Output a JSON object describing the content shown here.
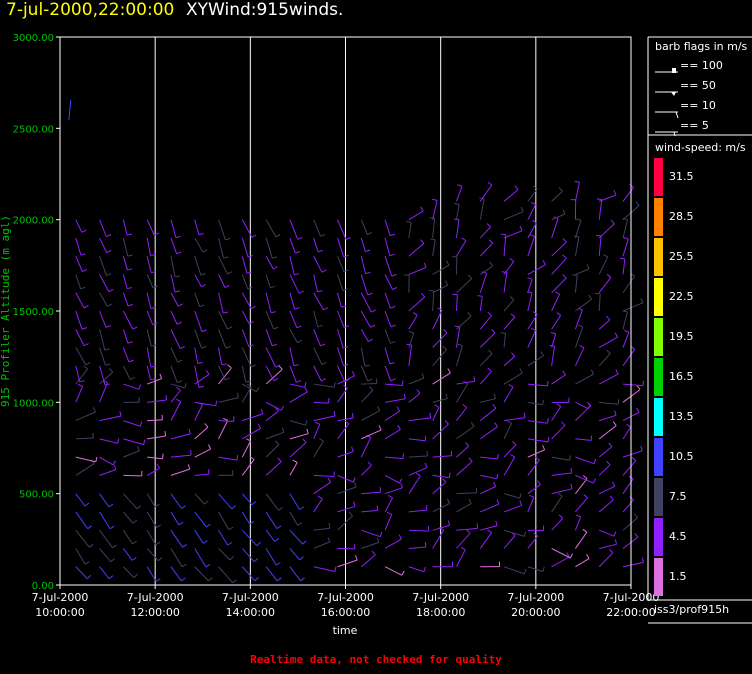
{
  "header": {
    "date_title": "7-jul-2000,22:00:00",
    "product_title": "XYWind:915winds."
  },
  "chart_data": {
    "type": "wind-barb",
    "ylabel": "915 Profiler Altitude (m agl)",
    "xlabel": "time",
    "ylim": [
      0,
      3000
    ],
    "y_ticks": [
      "0.00",
      "500.00",
      "1000.00",
      "1500.00",
      "2000.00",
      "2500.00",
      "3000.00"
    ],
    "x_ticks": [
      {
        "date": "7-Jul-2000",
        "time": "10:00:00"
      },
      {
        "date": "7-Jul-2000",
        "time": "12:00:00"
      },
      {
        "date": "7-Jul-2000",
        "time": "14:00:00"
      },
      {
        "date": "7-Jul-2000",
        "time": "16:00:00"
      },
      {
        "date": "7-Jul-2000",
        "time": "18:00:00"
      },
      {
        "date": "7-Jul-2000",
        "time": "20:00:00"
      },
      {
        "date": "7-Jul-2000",
        "time": "22:00:00"
      }
    ],
    "xlim_hours": [
      10,
      22
    ],
    "profile_interval_minutes": 30,
    "barb_legend": {
      "title": "barb flags in m/s",
      "entries": [
        "== 100",
        "== 50",
        "== 10",
        "== 5"
      ]
    },
    "color_scale": {
      "title": "wind-speed: m/s",
      "labels": [
        "31.5",
        "28.5",
        "25.5",
        "22.5",
        "19.5",
        "16.5",
        "13.5",
        "10.5",
        "7.5",
        "4.5",
        "1.5"
      ],
      "colors": [
        "#ff0040",
        "#ff8000",
        "#ffc000",
        "#ffff00",
        "#80ff00",
        "#00d000",
        "#00ffff",
        "#4040ff",
        "#404060",
        "#9020ff",
        "#e070e0"
      ]
    },
    "station": "iss3/prof915h"
  },
  "footer": {
    "note": "Realtime data, not checked for quality"
  }
}
